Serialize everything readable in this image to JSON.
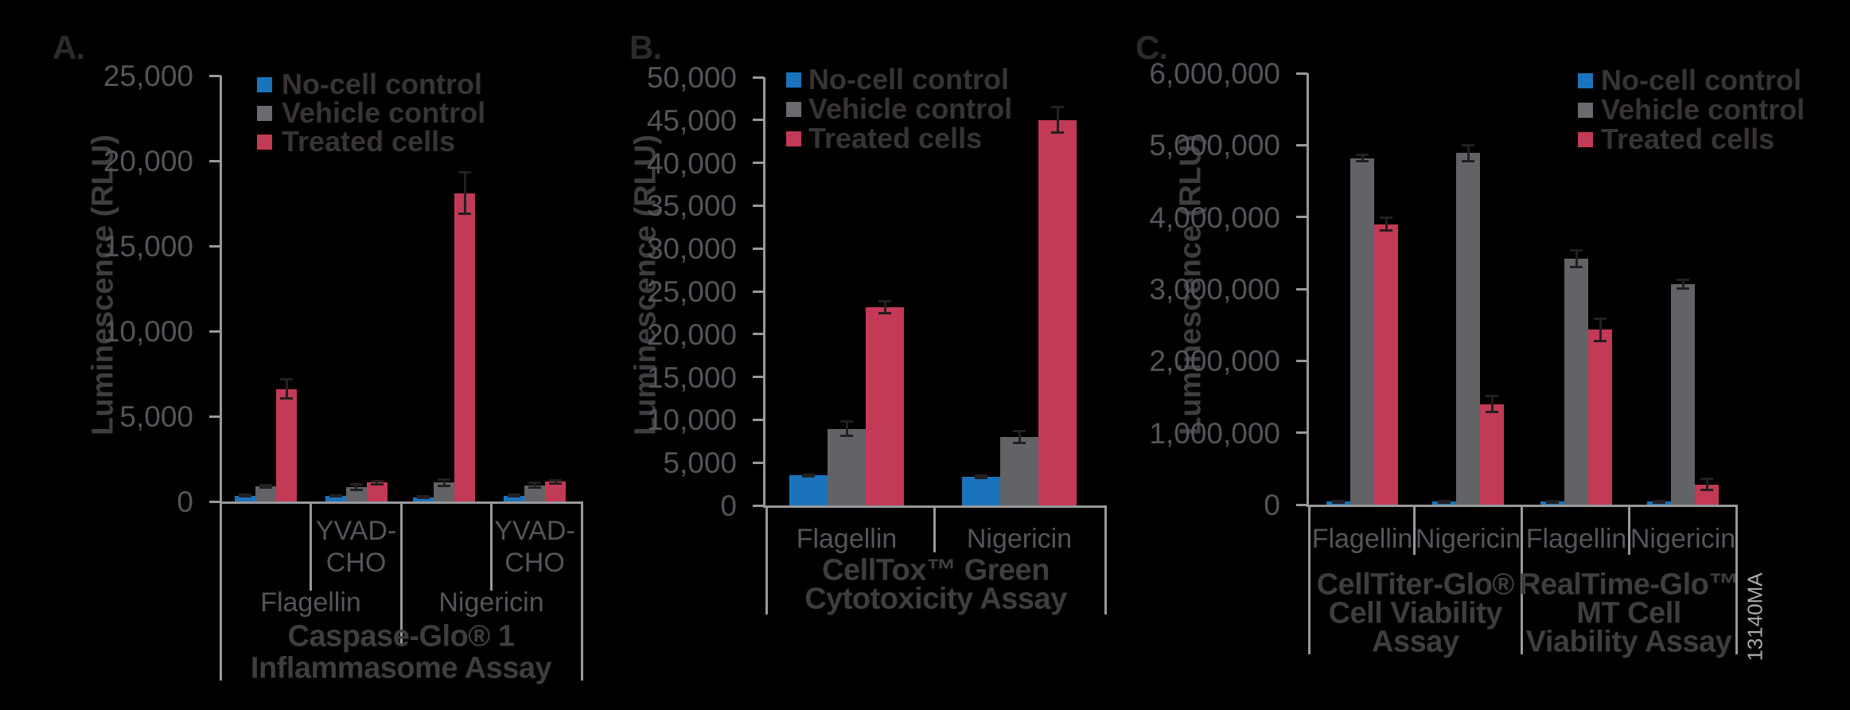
{
  "figure_id": "13140MA",
  "colors": {
    "background": "#000000",
    "axis_line": "#97999C",
    "tick_text": "#54555A",
    "category_text": "#54555A",
    "title_text": "#403D40",
    "legend_text": "#383436",
    "panel_letter": "#2E2A2C",
    "error_bar": "#241F21",
    "watermark": "#A7A9AC",
    "series": {
      "no_cell": "#1B74BB",
      "vehicle": "#626367",
      "treated": "#C23A55"
    }
  },
  "legend": {
    "items": [
      {
        "label": "No-cell control",
        "color": "#1B74BB",
        "swatch": "blue-square"
      },
      {
        "label": "Vehicle control",
        "color": "#6A6B6F",
        "swatch": "gray-square"
      },
      {
        "label": "Treated cells",
        "color": "#C23A55",
        "swatch": "red-square"
      }
    ]
  },
  "chart_data": [
    {
      "type": "bar",
      "panel": "A.",
      "ylabel": "Luminescence (RLU)",
      "ylim": [
        0,
        25000
      ],
      "yticks": [
        "25,000",
        "20,000",
        "15,000",
        "10,000",
        "5,000",
        "0"
      ],
      "grid": false,
      "legend_position": "top-right-of-axis",
      "series_names": [
        "No-cell control",
        "Vehicle control",
        "Treated cells"
      ],
      "groups": [
        {
          "tier1": "",
          "values": [
            350,
            900,
            6600
          ],
          "errors": [
            40,
            80,
            550
          ]
        },
        {
          "tier1": "YVAD-\nCHO",
          "values": [
            330,
            850,
            1100
          ],
          "errors": [
            40,
            150,
            90
          ]
        },
        {
          "tier1": "",
          "values": [
            250,
            1100,
            18100
          ],
          "errors": [
            40,
            200,
            1200
          ]
        },
        {
          "tier1": "YVAD-\nCHO",
          "values": [
            350,
            950,
            1150
          ],
          "errors": [
            40,
            150,
            90
          ]
        }
      ],
      "tier2": [
        {
          "label": "Flagellin",
          "span": [
            0,
            2
          ]
        },
        {
          "label": "Nigericin",
          "span": [
            2,
            4
          ]
        }
      ],
      "titles": [
        {
          "lines": [
            "Caspase-Glo® 1",
            "Inflammasome Assay"
          ],
          "span": [
            0,
            4
          ]
        }
      ]
    },
    {
      "type": "bar",
      "panel": "B.",
      "ylabel": "Luminescence (RLU)",
      "ylim": [
        0,
        50000
      ],
      "yticks": [
        "50,000",
        "45,000",
        "40,000",
        "35,000",
        "30,000",
        "25,000",
        "20,000",
        "15,000",
        "10,000",
        "5,000",
        "0"
      ],
      "grid": false,
      "legend_position": "top-right-of-axis",
      "series_names": [
        "No-cell control",
        "Vehicle control",
        "Treated cells"
      ],
      "groups": [
        {
          "tier1": "Flagellin",
          "values": [
            3500,
            8950,
            23100
          ],
          "errors": [
            120,
            850,
            700
          ]
        },
        {
          "tier1": "Nigericin",
          "values": [
            3350,
            7950,
            45000
          ],
          "errors": [
            120,
            700,
            1500
          ]
        }
      ],
      "tier2": [],
      "titles": [
        {
          "lines": [
            "CellTox™ Green",
            "Cytotoxicity Assay"
          ],
          "span": [
            0,
            2
          ]
        }
      ]
    },
    {
      "type": "bar",
      "panel": "C.",
      "ylabel": "Luminescence (RLU)",
      "ylim": [
        0,
        6000000
      ],
      "yticks": [
        "6,000,000",
        "5,000,000",
        "4,000,000",
        "3,000,000",
        "2,000,000",
        "1,000,000",
        "0"
      ],
      "grid": false,
      "legend_position": "top-right-of-axis",
      "series_names": [
        "No-cell control",
        "Vehicle control",
        "Treated cells"
      ],
      "groups": [
        {
          "tier1": "Flagellin",
          "values": [
            40000,
            4820000,
            3900000
          ],
          "errors": [
            10000,
            40000,
            90000
          ]
        },
        {
          "tier1": "Nigericin",
          "values": [
            40000,
            4890000,
            1400000
          ],
          "errors": [
            10000,
            110000,
            110000
          ]
        },
        {
          "tier1": "Flagellin",
          "values": [
            40000,
            3420000,
            2430000
          ],
          "errors": [
            10000,
            120000,
            150000
          ]
        },
        {
          "tier1": "Nigericin",
          "values": [
            40000,
            3070000,
            280000
          ],
          "errors": [
            10000,
            60000,
            80000
          ]
        }
      ],
      "tier2": [],
      "titles": [
        {
          "lines": [
            "CellTiter-Glo®",
            "Cell Viability",
            "Assay"
          ],
          "span": [
            0,
            2
          ]
        },
        {
          "lines": [
            "RealTime-Glo™",
            "MT Cell",
            "Viability Assay"
          ],
          "span": [
            2,
            4
          ]
        }
      ]
    }
  ]
}
